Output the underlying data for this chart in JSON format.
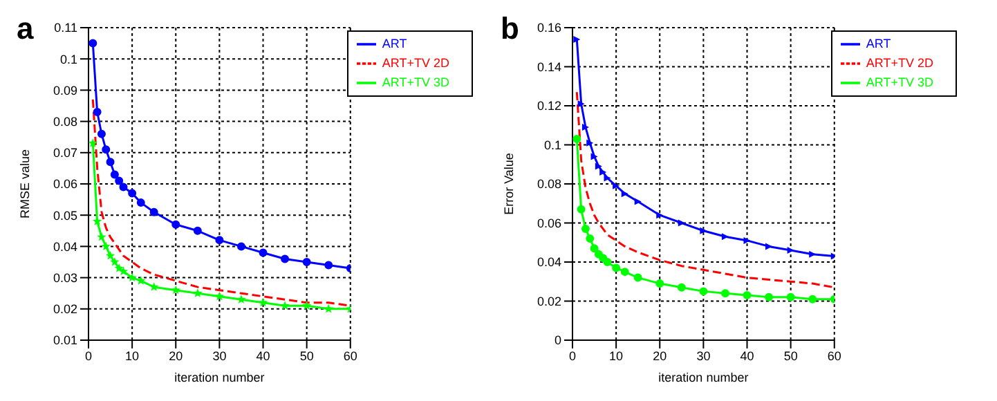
{
  "chart_data": [
    {
      "type": "line",
      "title": "a",
      "xlabel": "iteration number",
      "ylabel": "RMSE value",
      "xlim": [
        0,
        60
      ],
      "xticks": [
        0,
        10,
        20,
        30,
        40,
        50,
        60
      ],
      "ylim": [
        0.01,
        0.11
      ],
      "yticks": [
        0.01,
        0.02,
        0.03,
        0.04,
        0.05,
        0.06,
        0.07,
        0.08,
        0.09,
        0.1,
        0.11
      ],
      "grid": true,
      "legend": "top right",
      "x": [
        1,
        2,
        3,
        4,
        5,
        6,
        7,
        8,
        10,
        12,
        15,
        20,
        25,
        30,
        35,
        40,
        45,
        50,
        55,
        60
      ],
      "series": [
        {
          "name": "ART",
          "color": "#0000ff",
          "marker": "circle",
          "line_style": "solid",
          "values": [
            0.105,
            0.083,
            0.076,
            0.071,
            0.067,
            0.063,
            0.061,
            0.059,
            0.057,
            0.054,
            0.051,
            0.047,
            0.045,
            0.042,
            0.04,
            0.038,
            0.036,
            0.035,
            0.034,
            0.033
          ]
        },
        {
          "name": "ART+TV 2D",
          "color": "#ff0000",
          "marker": "none",
          "line_style": "dashed",
          "values": [
            0.087,
            0.065,
            0.051,
            0.046,
            0.043,
            0.041,
            0.039,
            0.037,
            0.035,
            0.033,
            0.031,
            0.029,
            0.027,
            0.026,
            0.025,
            0.024,
            0.023,
            0.022,
            0.022,
            0.021
          ]
        },
        {
          "name": "ART+TV 3D",
          "color": "#00ff00",
          "marker": "star",
          "line_style": "solid",
          "values": [
            0.073,
            0.048,
            0.043,
            0.04,
            0.037,
            0.035,
            0.033,
            0.032,
            0.03,
            0.029,
            0.027,
            0.026,
            0.025,
            0.024,
            0.023,
            0.022,
            0.021,
            0.021,
            0.02,
            0.02
          ]
        }
      ]
    },
    {
      "type": "line",
      "title": "b",
      "xlabel": "iteration number",
      "ylabel": "Error Value",
      "xlim": [
        0,
        60
      ],
      "xticks": [
        0,
        10,
        20,
        30,
        40,
        50,
        60
      ],
      "ylim": [
        0,
        0.16
      ],
      "yticks": [
        0,
        0.02,
        0.04,
        0.06,
        0.08,
        0.1,
        0.12,
        0.14,
        0.16
      ],
      "grid": true,
      "legend": "top right",
      "x": [
        1,
        2,
        3,
        4,
        5,
        6,
        7,
        8,
        10,
        12,
        15,
        20,
        25,
        30,
        35,
        40,
        45,
        50,
        55,
        60
      ],
      "series": [
        {
          "name": "ART",
          "color": "#0000ff",
          "marker": "triangle",
          "line_style": "solid",
          "values": [
            0.154,
            0.121,
            0.109,
            0.101,
            0.094,
            0.089,
            0.086,
            0.083,
            0.079,
            0.075,
            0.071,
            0.064,
            0.06,
            0.056,
            0.053,
            0.051,
            0.048,
            0.046,
            0.044,
            0.043
          ]
        },
        {
          "name": "ART+TV 2D",
          "color": "#ff0000",
          "marker": "none",
          "line_style": "dashed",
          "values": [
            0.127,
            0.092,
            0.078,
            0.07,
            0.064,
            0.06,
            0.057,
            0.054,
            0.051,
            0.048,
            0.045,
            0.041,
            0.038,
            0.036,
            0.034,
            0.032,
            0.031,
            0.03,
            0.029,
            0.027
          ]
        },
        {
          "name": "ART+TV 3D",
          "color": "#00ff00",
          "marker": "circle",
          "line_style": "solid",
          "values": [
            0.103,
            0.067,
            0.057,
            0.052,
            0.047,
            0.044,
            0.042,
            0.04,
            0.037,
            0.035,
            0.032,
            0.029,
            0.027,
            0.025,
            0.024,
            0.023,
            0.022,
            0.022,
            0.021,
            0.021
          ]
        }
      ]
    }
  ]
}
